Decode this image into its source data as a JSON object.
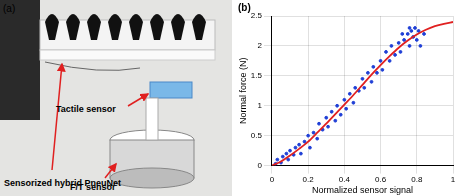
{
  "panel_a": {
    "label": "(a)",
    "annotations": [
      "Sensorized hybrid PneuNet",
      "Tactile sensor",
      "F/T sensor"
    ]
  },
  "chart_data": {
    "type": "scatter",
    "title": "(b)",
    "x_label": "Normalized sensor signal",
    "y_label": "Normal force (N)",
    "xlim": [
      0,
      1
    ],
    "xticks": [
      0,
      0.2,
      0.4,
      0.6,
      0.8,
      1
    ],
    "ylim": [
      0,
      2.5
    ],
    "yticks": [
      0,
      0.5,
      1,
      1.5,
      2,
      2.5
    ],
    "grid": true,
    "series": [
      {
        "type": "scatter",
        "color": "#1f3fd6",
        "marker": "circle",
        "x": [
          0.02,
          0.03,
          0.05,
          0.06,
          0.08,
          0.09,
          0.1,
          0.12,
          0.13,
          0.15,
          0.16,
          0.18,
          0.2,
          0.21,
          0.23,
          0.25,
          0.26,
          0.28,
          0.3,
          0.31,
          0.33,
          0.35,
          0.36,
          0.38,
          0.4,
          0.41,
          0.43,
          0.45,
          0.46,
          0.48,
          0.5,
          0.51,
          0.53,
          0.55,
          0.56,
          0.58,
          0.6,
          0.61,
          0.63,
          0.65,
          0.66,
          0.68,
          0.7,
          0.71,
          0.73,
          0.75,
          0.76,
          0.77,
          0.78,
          0.79,
          0.8,
          0.81,
          0.82,
          0.84,
          0.76,
          0.72
        ],
        "values": [
          0.03,
          0.1,
          0.05,
          0.15,
          0.2,
          0.1,
          0.25,
          0.18,
          0.3,
          0.35,
          0.2,
          0.4,
          0.5,
          0.3,
          0.55,
          0.45,
          0.7,
          0.6,
          0.8,
          0.65,
          0.9,
          0.75,
          1.0,
          0.85,
          1.1,
          0.95,
          1.2,
          1.05,
          1.3,
          1.25,
          1.45,
          1.3,
          1.55,
          1.4,
          1.65,
          1.55,
          1.75,
          1.6,
          1.9,
          1.75,
          2.0,
          1.85,
          2.05,
          1.9,
          2.1,
          2.2,
          2.0,
          2.25,
          2.15,
          2.3,
          2.1,
          2.25,
          2.0,
          2.2,
          2.3,
          2.2
        ]
      },
      {
        "type": "line",
        "color": "#e02020",
        "line_style": "solid",
        "x": [
          0,
          0.05,
          0.1,
          0.15,
          0.2,
          0.25,
          0.3,
          0.35,
          0.4,
          0.45,
          0.5,
          0.55,
          0.6,
          0.65,
          0.7,
          0.75,
          0.8,
          0.85,
          0.9,
          0.95,
          1
        ],
        "values": [
          0,
          0.07,
          0.17,
          0.28,
          0.4,
          0.55,
          0.7,
          0.86,
          1.02,
          1.18,
          1.35,
          1.52,
          1.68,
          1.83,
          1.97,
          2.09,
          2.19,
          2.27,
          2.33,
          2.37,
          2.4
        ]
      }
    ]
  }
}
